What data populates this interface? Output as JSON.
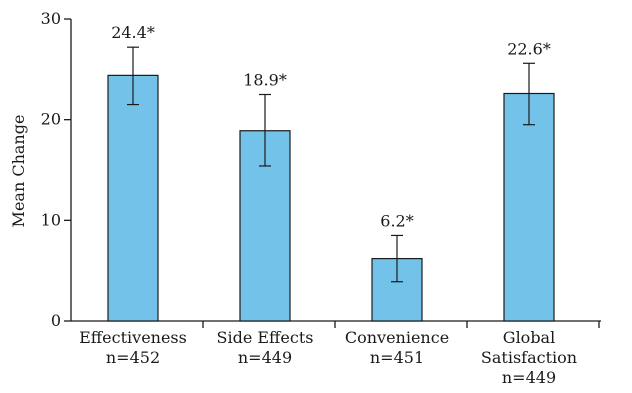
{
  "chart_data": {
    "type": "bar",
    "title": "",
    "xlabel": "",
    "ylabel": "Mean Change",
    "ylim": [
      0,
      30
    ],
    "yticks": [
      0,
      10,
      20,
      30
    ],
    "grid": false,
    "legend": "none",
    "bar_color": "#73C2EA",
    "bar_edge_color": "#1a1a1a",
    "categories": [
      {
        "lines": [
          "Effectiveness",
          "n=452"
        ]
      },
      {
        "lines": [
          "Side Effects",
          "n=449"
        ]
      },
      {
        "lines": [
          "Convenience",
          "n=451"
        ]
      },
      {
        "lines": [
          "Global",
          "Satisfaction",
          "n=449"
        ]
      }
    ],
    "values": [
      24.4,
      18.9,
      6.2,
      22.6
    ],
    "error_low": [
      21.5,
      15.4,
      3.9,
      19.5
    ],
    "error_high": [
      27.2,
      22.5,
      8.5,
      25.6
    ],
    "data_labels": [
      "24.4*",
      "18.9*",
      "6.2*",
      "22.6*"
    ]
  }
}
